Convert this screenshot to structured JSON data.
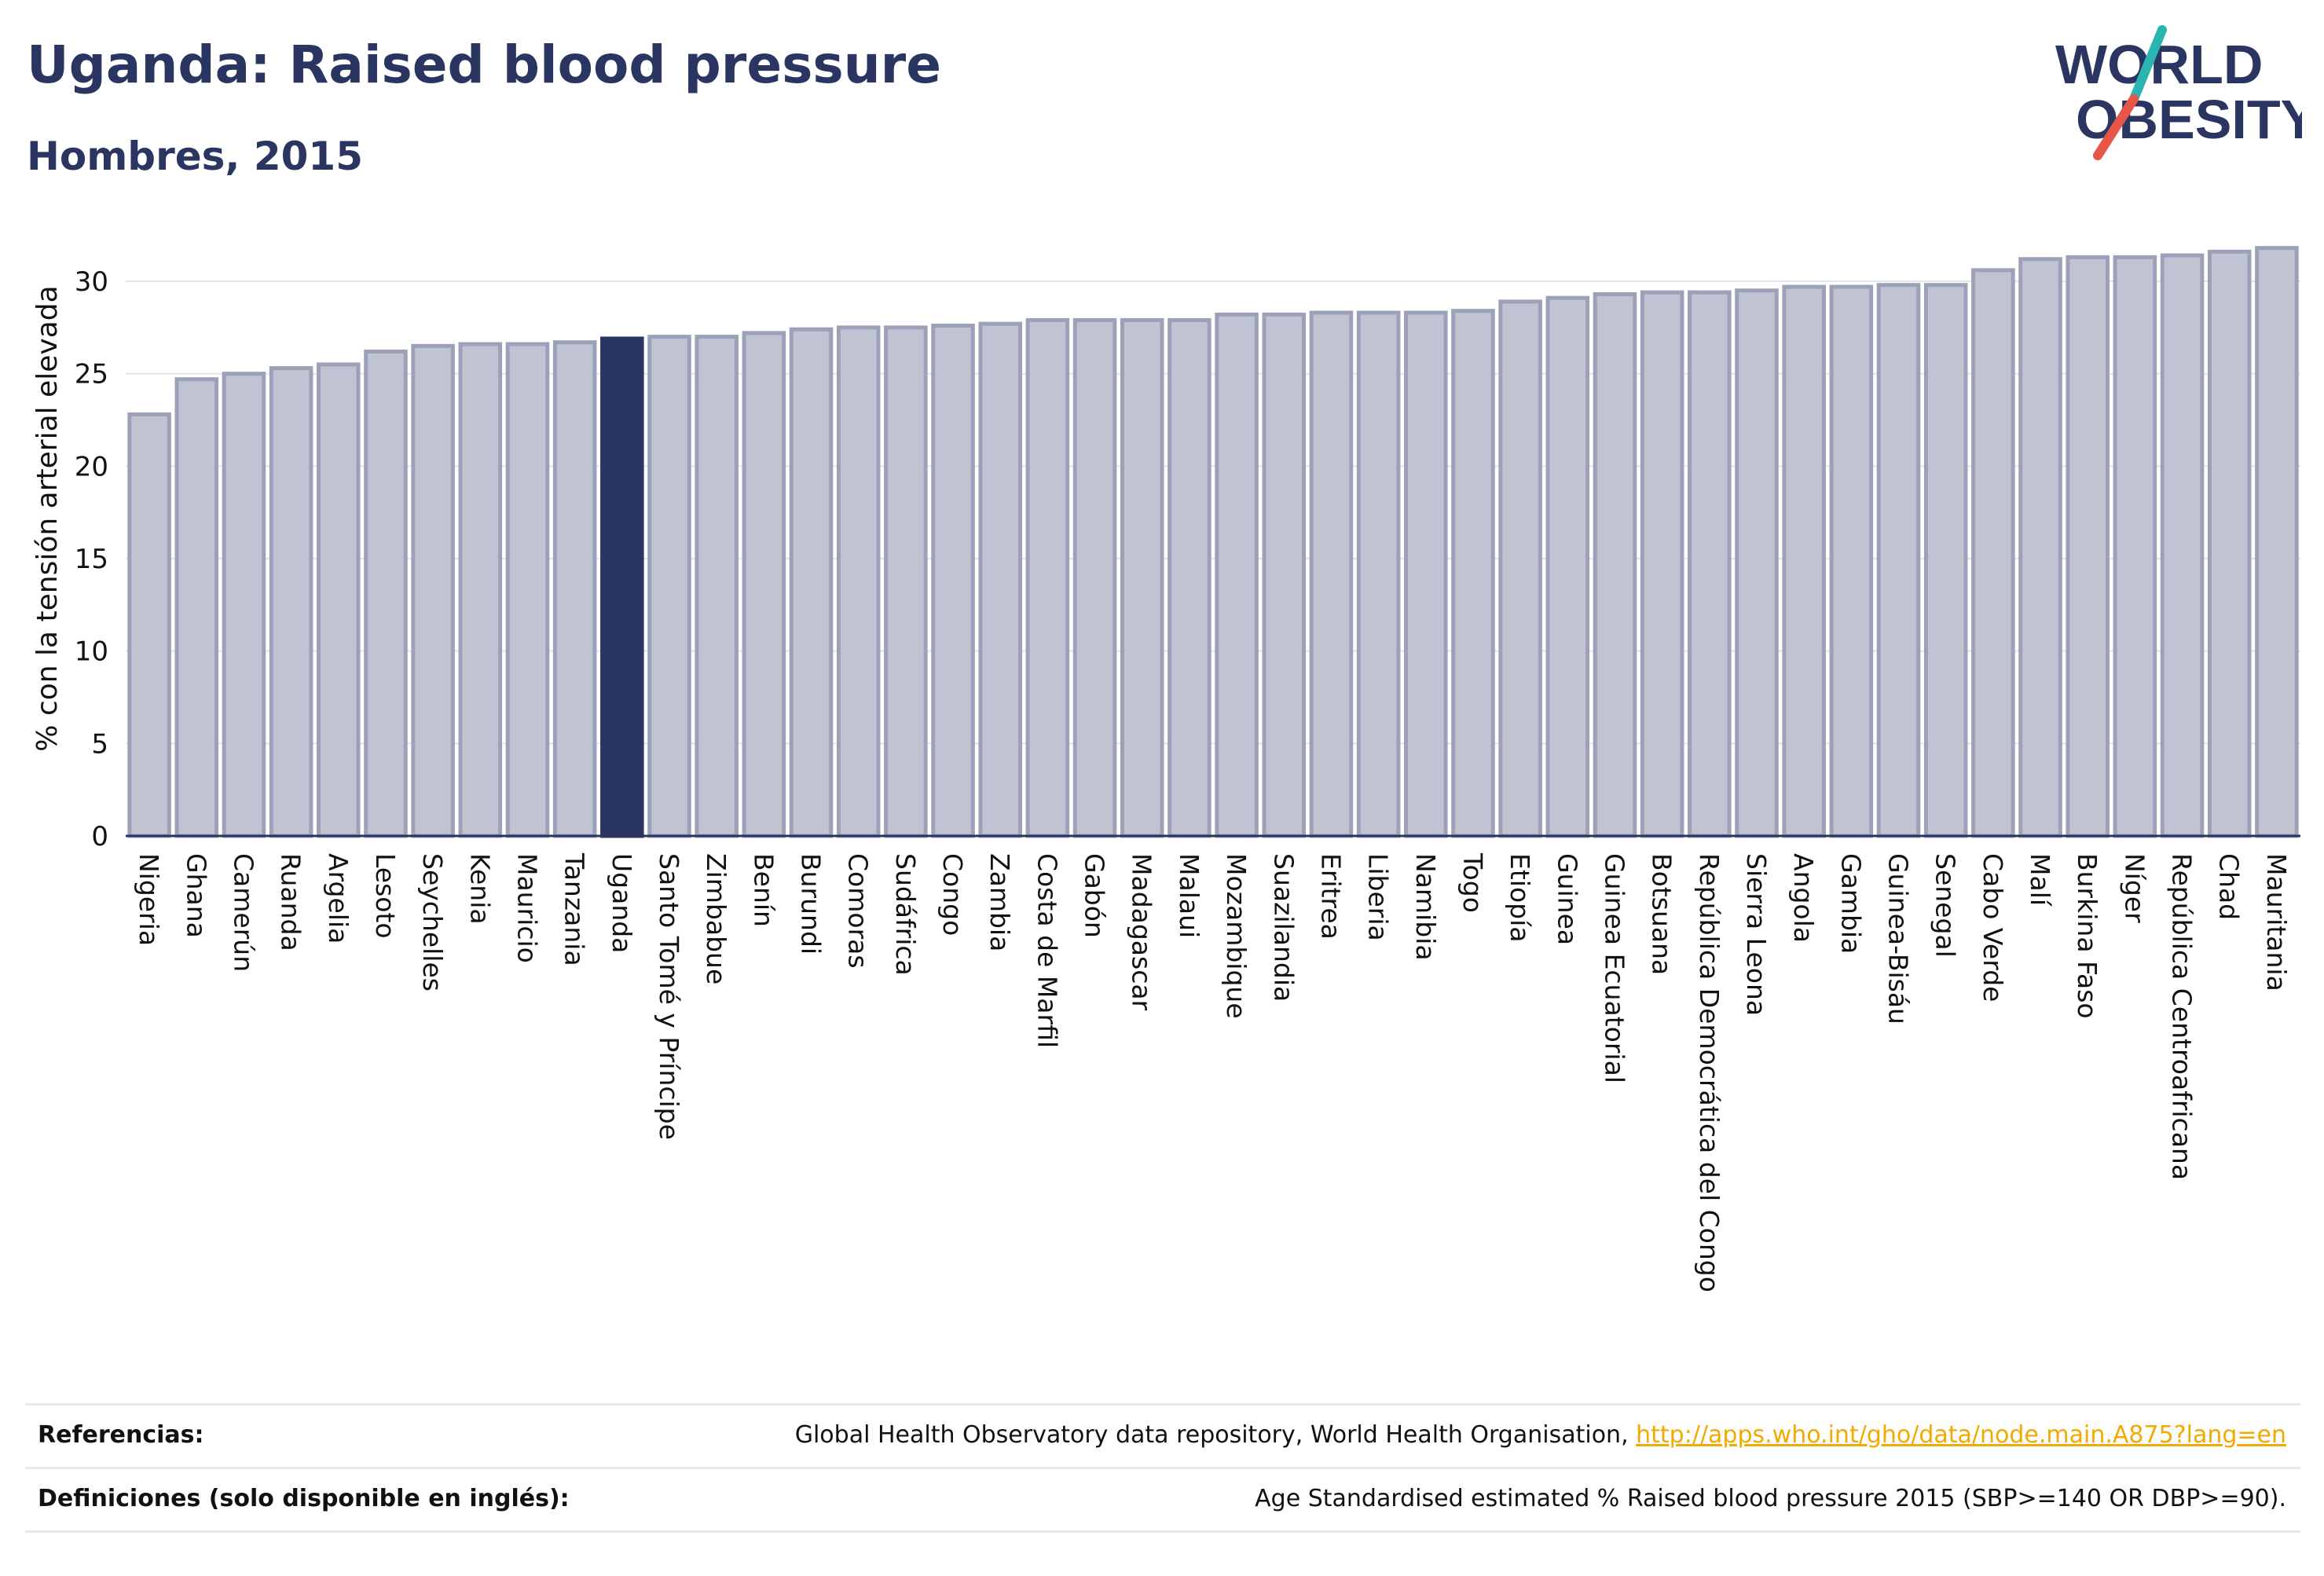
{
  "header": {
    "title": "Uganda: Raised blood pressure",
    "subtitle": "Hombres, 2015"
  },
  "logo": {
    "line1": "WORLD",
    "line2": "OBESITY"
  },
  "colors": {
    "title": "#2b3561",
    "bar_fill": "#c0c4d2",
    "bar_edge": "#9ba1b8",
    "highlight": "#2b3561",
    "grid": "#e3e5ec",
    "link": "#f2a900",
    "logo_teal": "#2bb5b0",
    "logo_red": "#e8564a"
  },
  "chart_data": {
    "type": "bar",
    "title": "",
    "xlabel": "",
    "ylabel": "% con la tensión arterial elevada",
    "ylim": [
      0,
      32
    ],
    "yticks": [
      0,
      5,
      10,
      15,
      20,
      25,
      30
    ],
    "grid": true,
    "highlight_category": "Uganda",
    "categories": [
      "Nigeria",
      "Ghana",
      "Camerún",
      "Ruanda",
      "Argelia",
      "Lesoto",
      "Seychelles",
      "Kenia",
      "Mauricio",
      "Tanzania",
      "Uganda",
      "Santo Tomé y Príncipe",
      "Zimbabue",
      "Benín",
      "Burundi",
      "Comoras",
      "Sudáfrica",
      "Congo",
      "Zambia",
      "Costa de Marfil",
      "Gabón",
      "Madagascar",
      "Malaui",
      "Mozambique",
      "Suazilandia",
      "Eritrea",
      "Liberia",
      "Namibia",
      "Togo",
      "Etiopía",
      "Guinea",
      "Guinea Ecuatorial",
      "Botsuana",
      "República Democrática del Congo",
      "Sierra Leona",
      "Angola",
      "Gambia",
      "Guinea-Bisáu",
      "Senegal",
      "Cabo Verde",
      "Malí",
      "Burkina Faso",
      "Níger",
      "República Centroafricana",
      "Chad",
      "Mauritania"
    ],
    "values": [
      22.8,
      24.7,
      25.0,
      25.3,
      25.5,
      26.2,
      26.5,
      26.6,
      26.6,
      26.7,
      26.9,
      27.0,
      27.0,
      27.2,
      27.4,
      27.5,
      27.5,
      27.6,
      27.7,
      27.9,
      27.9,
      27.9,
      27.9,
      28.2,
      28.2,
      28.3,
      28.3,
      28.3,
      28.4,
      28.9,
      29.1,
      29.3,
      29.4,
      29.4,
      29.5,
      29.7,
      29.7,
      29.8,
      29.8,
      30.6,
      31.2,
      31.3,
      31.3,
      31.4,
      31.6,
      31.8
    ]
  },
  "references": {
    "label": "Referencias:",
    "text": "Global Health Observatory data repository, World Health Organisation, ",
    "link": "http://apps.who.int/gho/data/node.main.A875?lang=en"
  },
  "definitions": {
    "label": "Definiciones (solo disponible en inglés):",
    "text": "Age Standardised estimated % Raised blood pressure 2015 (SBP>=140 OR DBP>=90)."
  }
}
